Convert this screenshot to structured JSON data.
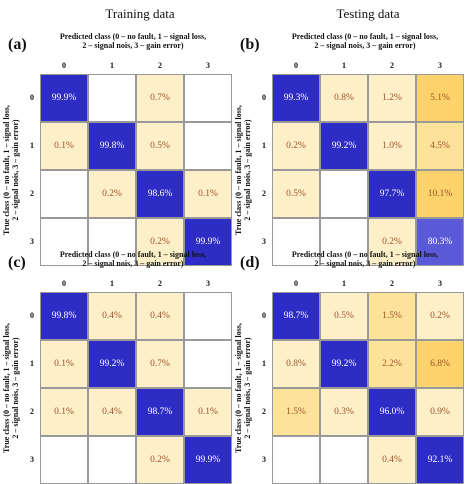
{
  "headers": {
    "training": "Training data",
    "testing": "Testing data"
  },
  "axis": {
    "predicted_line1": "Predicted class (0 – no fault, 1 – signal loss,",
    "predicted_line2": "2 – signal nois, 3 – gain error)",
    "true_line1": "True class (0 – no fault, 1 – signal loss,",
    "true_line2": "2 – signal nois, 3 – gain error)",
    "ticks": [
      "0",
      "1",
      "2",
      "3"
    ]
  },
  "colors": {
    "diagonal": "#2d2dc6",
    "diagonal_light": "#5a5ad8",
    "off_light": "#fdefc8",
    "off_mid": "#fde29a",
    "off_strong": "#fcd36a",
    "off_text": "#a0522d",
    "diag_text": "#ffffff"
  },
  "chart_data": [
    {
      "type": "heatmap",
      "label": "(a)",
      "rows": [
        [
          "99.9%",
          "",
          "0.7%",
          ""
        ],
        [
          "0.1%",
          "99.8%",
          "0.5%",
          ""
        ],
        [
          "",
          "0.2%",
          "98.6%",
          "0.1%"
        ],
        [
          "",
          "",
          "0.2%",
          "99.9%"
        ]
      ]
    },
    {
      "type": "heatmap",
      "label": "(b)",
      "rows": [
        [
          "99.3%",
          "0.8%",
          "1.2%",
          "5.1%"
        ],
        [
          "0.2%",
          "99.2%",
          "1.0%",
          "4.5%"
        ],
        [
          "0.5%",
          "",
          "97.7%",
          "10.1%"
        ],
        [
          "",
          "",
          "0.2%",
          "80.3%"
        ]
      ]
    },
    {
      "type": "heatmap",
      "label": "(c)",
      "rows": [
        [
          "99.8%",
          "0.4%",
          "0.4%",
          ""
        ],
        [
          "0.1%",
          "99.2%",
          "0.7%",
          ""
        ],
        [
          "0.1%",
          "0.4%",
          "98.7%",
          "0.1%"
        ],
        [
          "",
          "",
          "0.2%",
          "99.9%"
        ]
      ]
    },
    {
      "type": "heatmap",
      "label": "(d)",
      "rows": [
        [
          "98.7%",
          "0.5%",
          "1.5%",
          "0.2%"
        ],
        [
          "0.8%",
          "99.2%",
          "2.2%",
          "6.8%"
        ],
        [
          "1.5%",
          "0.3%",
          "96.0%",
          "0.9%"
        ],
        [
          "",
          "",
          "0.4%",
          "92.1%"
        ]
      ]
    }
  ]
}
